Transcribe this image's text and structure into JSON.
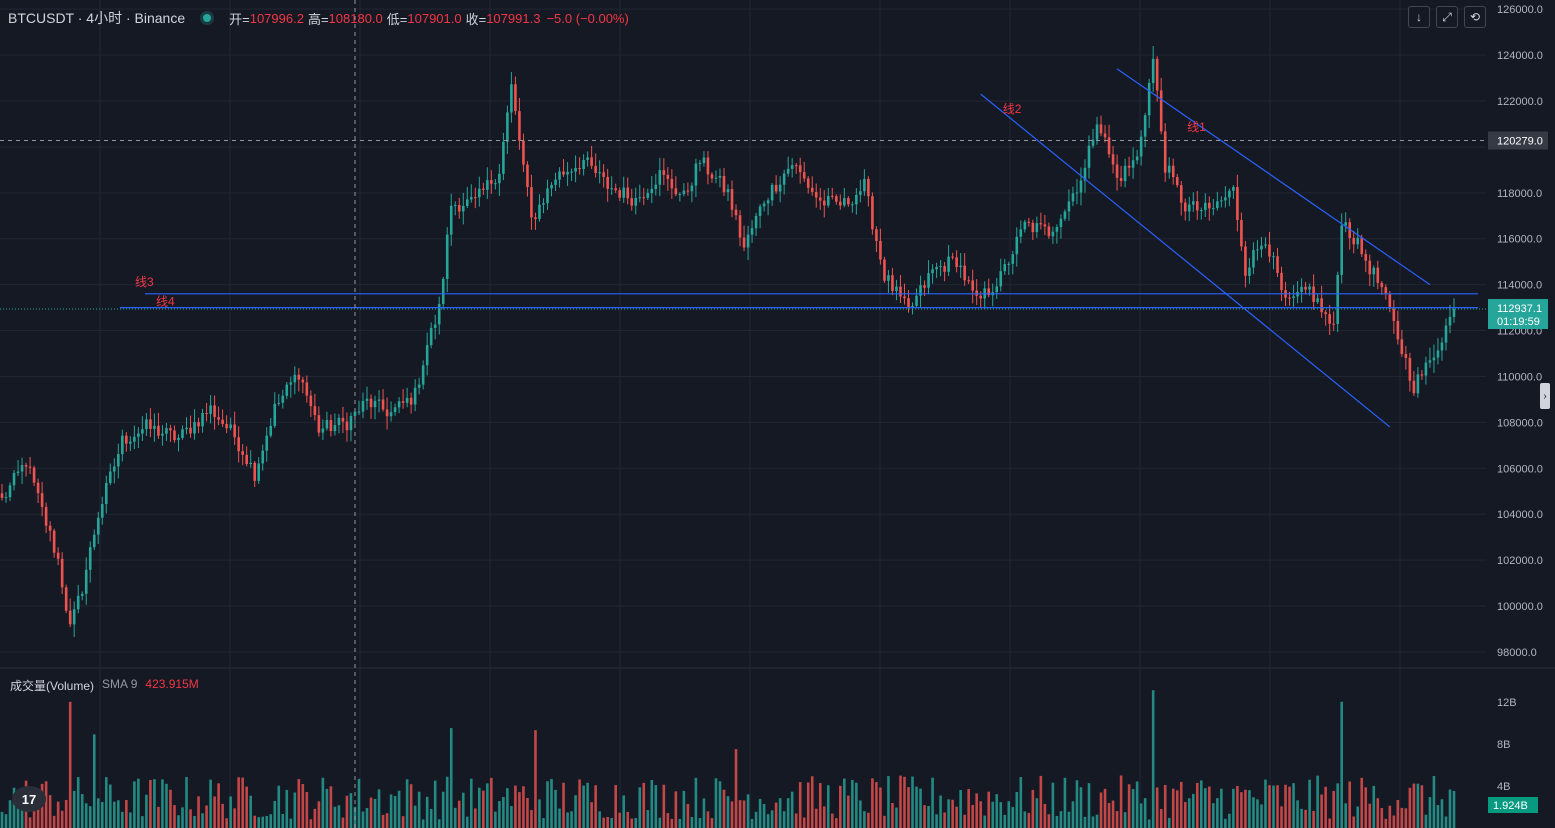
{
  "header": {
    "symbol": "BTCUSDT · 4小时 · Binance",
    "open_label": "开=",
    "open": "107996.2",
    "high_label": "高=",
    "high": "108180.0",
    "low_label": "低=",
    "low": "107901.0",
    "close_label": "收=",
    "close": "107991.3",
    "change": "−5.0 (−0.00%)"
  },
  "volume_header": {
    "title": "成交量(Volume)",
    "sma": "SMA 9",
    "value": "423.915M"
  },
  "toolbar": {
    "down_icon": "↓",
    "expand_icon": "⤢",
    "reset_icon": "⟲",
    "expander_icon": "›"
  },
  "logo": "17",
  "colors": {
    "up": "#26a69a",
    "down": "#ef5350",
    "bg": "#151924",
    "drawing": "#2962ff",
    "drawing_label": "#f23645"
  },
  "chart_data": [
    {
      "type": "candlestick",
      "title": "BTCUSDT · 4小时 · Binance",
      "y_ticks": [
        "126000.0",
        "124000.0",
        "122000.0",
        "120000.0",
        "118000.0",
        "116000.0",
        "114000.0",
        "112000.0",
        "110000.0",
        "108000.0",
        "106000.0",
        "104000.0",
        "102000.0",
        "100000.0",
        "98000.0"
      ],
      "ylim": [
        97300,
        126400
      ],
      "crosshair_price": "120279.0",
      "current_price": "112937.1",
      "countdown": "01:19:59",
      "grid": true,
      "trendlines": [
        {
          "label": "线1",
          "start": 123400,
          "end": 114000,
          "bars_span": [
            278,
            356
          ]
        },
        {
          "label": "线2",
          "start": 122300,
          "end": 107800,
          "bars_span": [
            244,
            346
          ]
        }
      ],
      "hlines": [
        {
          "label": "线3",
          "price": 113600
        },
        {
          "label": "线4",
          "price": 113000
        }
      ],
      "anchors": [
        {
          "bar": 0,
          "p": 104600
        },
        {
          "bar": 6,
          "p": 106300
        },
        {
          "bar": 14,
          "p": 102000
        },
        {
          "bar": 17,
          "p": 99000
        },
        {
          "bar": 20,
          "p": 100800
        },
        {
          "bar": 24,
          "p": 104000
        },
        {
          "bar": 30,
          "p": 107200
        },
        {
          "bar": 36,
          "p": 107800
        },
        {
          "bar": 44,
          "p": 107300
        },
        {
          "bar": 52,
          "p": 108600
        },
        {
          "bar": 58,
          "p": 107400
        },
        {
          "bar": 63,
          "p": 105800
        },
        {
          "bar": 68,
          "p": 108600
        },
        {
          "bar": 74,
          "p": 110200
        },
        {
          "bar": 79,
          "p": 107700
        },
        {
          "bar": 86,
          "p": 108000
        },
        {
          "bar": 91,
          "p": 108900
        },
        {
          "bar": 97,
          "p": 108400
        },
        {
          "bar": 103,
          "p": 109200
        },
        {
          "bar": 106,
          "p": 111400
        },
        {
          "bar": 109,
          "p": 112900
        },
        {
          "bar": 112,
          "p": 117500
        },
        {
          "bar": 118,
          "p": 117600
        },
        {
          "bar": 124,
          "p": 119000
        },
        {
          "bar": 127,
          "p": 122600
        },
        {
          "bar": 132,
          "p": 116800
        },
        {
          "bar": 138,
          "p": 118700
        },
        {
          "bar": 145,
          "p": 119400
        },
        {
          "bar": 151,
          "p": 118300
        },
        {
          "bar": 158,
          "p": 117700
        },
        {
          "bar": 164,
          "p": 118800
        },
        {
          "bar": 170,
          "p": 117800
        },
        {
          "bar": 174,
          "p": 119400
        },
        {
          "bar": 181,
          "p": 118000
        },
        {
          "bar": 185,
          "p": 115600
        },
        {
          "bar": 190,
          "p": 117700
        },
        {
          "bar": 197,
          "p": 119300
        },
        {
          "bar": 204,
          "p": 117600
        },
        {
          "bar": 210,
          "p": 117500
        },
        {
          "bar": 215,
          "p": 118300
        },
        {
          "bar": 220,
          "p": 114400
        },
        {
          "bar": 226,
          "p": 112800
        },
        {
          "bar": 232,
          "p": 114600
        },
        {
          "bar": 238,
          "p": 115100
        },
        {
          "bar": 243,
          "p": 113200
        },
        {
          "bar": 249,
          "p": 114300
        },
        {
          "bar": 255,
          "p": 116600
        },
        {
          "bar": 261,
          "p": 116300
        },
        {
          "bar": 265,
          "p": 117300
        },
        {
          "bar": 270,
          "p": 119000
        },
        {
          "bar": 273,
          "p": 121300
        },
        {
          "bar": 278,
          "p": 118600
        },
        {
          "bar": 283,
          "p": 119500
        },
        {
          "bar": 287,
          "p": 123800
        },
        {
          "bar": 290,
          "p": 119200
        },
        {
          "bar": 295,
          "p": 117400
        },
        {
          "bar": 301,
          "p": 117200
        },
        {
          "bar": 307,
          "p": 118100
        },
        {
          "bar": 310,
          "p": 114700
        },
        {
          "bar": 315,
          "p": 116100
        },
        {
          "bar": 320,
          "p": 113100
        },
        {
          "bar": 326,
          "p": 113800
        },
        {
          "bar": 332,
          "p": 112000
        },
        {
          "bar": 334,
          "p": 116900
        },
        {
          "bar": 339,
          "p": 115400
        },
        {
          "bar": 344,
          "p": 113800
        },
        {
          "bar": 348,
          "p": 111700
        },
        {
          "bar": 352,
          "p": 109600
        },
        {
          "bar": 356,
          "p": 110600
        },
        {
          "bar": 362,
          "p": 112937
        }
      ]
    },
    {
      "type": "bar",
      "title": "成交量(Volume)",
      "y_ticks": [
        "12B",
        "8B",
        "4B"
      ],
      "ylim": [
        0,
        13500000000
      ],
      "last_value": "1.924B",
      "spikes": [
        {
          "bar": 17,
          "v": 12000000000
        },
        {
          "bar": 23,
          "v": 8900000000
        },
        {
          "bar": 112,
          "v": 9500000000
        },
        {
          "bar": 133,
          "v": 9300000000
        },
        {
          "bar": 183,
          "v": 7500000000
        },
        {
          "bar": 287,
          "v": 13100000000
        },
        {
          "bar": 334,
          "v": 12000000000
        }
      ]
    }
  ]
}
